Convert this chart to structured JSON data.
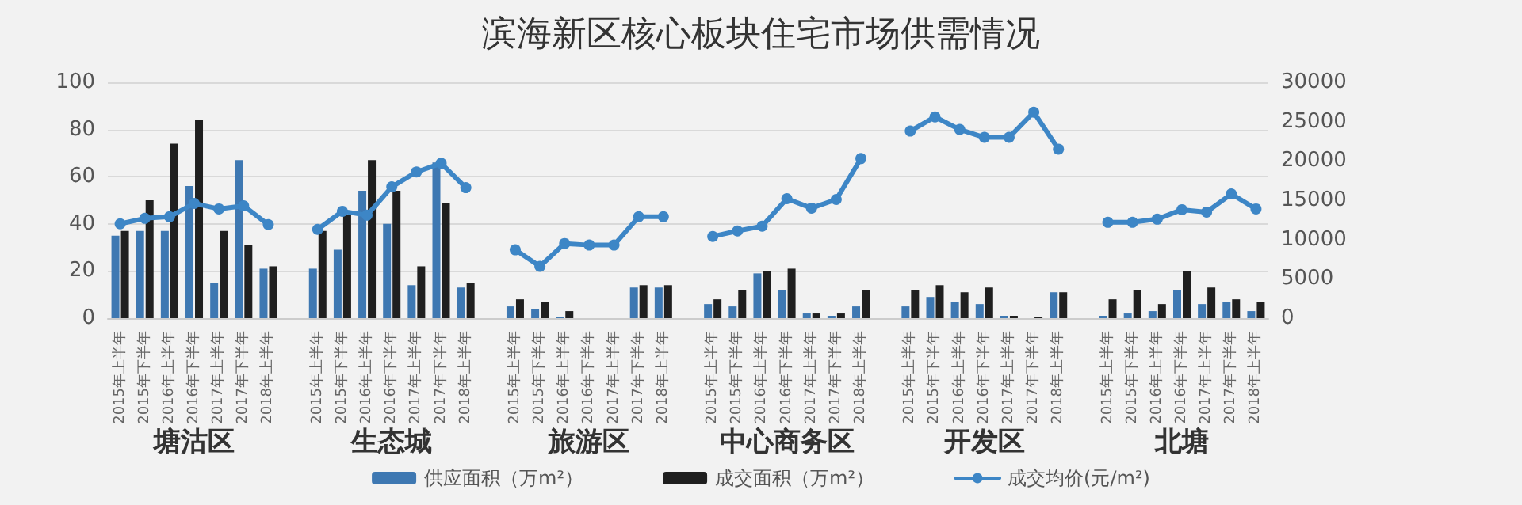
{
  "chart_data": {
    "type": "bar",
    "title": "滨海新区核心板块住宅市场供需情况",
    "categories": [
      "2015年上半年",
      "2015年下半年",
      "2016年上半年",
      "2016年下半年",
      "2017年上半年",
      "2017年下半年",
      "2018年上半年",
      null,
      "2015年上半年",
      "2015年下半年",
      "2016年上半年",
      "2016年下半年",
      "2017年上半年",
      "2017年下半年",
      "2018年上半年",
      null,
      "2015年上半年",
      "2015年下半年",
      "2016年上半年",
      "2016年下半年",
      "2017年上半年",
      "2017年下半年",
      "2018年上半年",
      null,
      "2015年上半年",
      "2015年下半年",
      "2016年上半年",
      "2016年下半年",
      "2017年上半年",
      "2017年下半年",
      "2018年上半年",
      null,
      "2015年上半年",
      "2015年下半年",
      "2016年上半年",
      "2016年下半年",
      "2017年上半年",
      "2017年下半年",
      "2018年上半年",
      null,
      "2015年上半年",
      "2015年下半年",
      "2016年上半年",
      "2016年下半年",
      "2017年上半年",
      "2017年下半年",
      "2018年上半年"
    ],
    "series": [
      {
        "name": "供应面积（万m²）",
        "color": "#3e78b2",
        "values": [
          35,
          37,
          37,
          56,
          15,
          67,
          21,
          null,
          21,
          29,
          54,
          40,
          14,
          66,
          13,
          null,
          5,
          4,
          0.5,
          0,
          0,
          13,
          13,
          null,
          6,
          5,
          19,
          12,
          2,
          1,
          5,
          null,
          5,
          9,
          7,
          6,
          1,
          0,
          11,
          null,
          1,
          2,
          3,
          12,
          6,
          7,
          3
        ]
      },
      {
        "name": "成交面积（万m²）",
        "color": "#1f1f1f",
        "values": [
          37,
          50,
          74,
          84,
          37,
          31,
          22,
          null,
          37,
          44,
          67,
          54,
          22,
          49,
          15,
          null,
          8,
          7,
          3,
          0,
          0,
          14,
          14,
          null,
          8,
          12,
          20,
          21,
          2,
          2,
          12,
          null,
          12,
          14,
          11,
          13,
          1,
          0.5,
          11,
          null,
          8,
          12,
          6,
          20,
          13,
          8,
          7
        ]
      },
      {
        "name": "成交均价(元/m²)",
        "type": "line",
        "axis": "y2",
        "color": "#3d86c6",
        "values": [
          12000,
          12700,
          12900,
          14600,
          13900,
          14300,
          11900,
          null,
          11300,
          13600,
          13100,
          16700,
          18600,
          19700,
          16600,
          null,
          8700,
          6600,
          9500,
          9300,
          9300,
          12900,
          12900,
          null,
          10400,
          11100,
          11700,
          15200,
          14000,
          15100,
          20300,
          null,
          23800,
          25600,
          24000,
          23000,
          23000,
          26200,
          21500,
          null,
          12200,
          12200,
          12600,
          13800,
          13500,
          15800,
          13900
        ]
      }
    ],
    "annotations": [
      "塘沽区",
      "生态城",
      "旅游区",
      "中心商务区",
      "开发区",
      "北塘"
    ],
    "ylim": [
      0,
      100
    ],
    "yticks": [
      0,
      20,
      40,
      60,
      80,
      100
    ],
    "y2lim": [
      0,
      30000
    ],
    "y2ticks": [
      0,
      5000,
      10000,
      15000,
      20000,
      25000,
      30000
    ],
    "grid": "y",
    "legend": "bottom",
    "marker": "circle",
    "line_style": "solid"
  }
}
